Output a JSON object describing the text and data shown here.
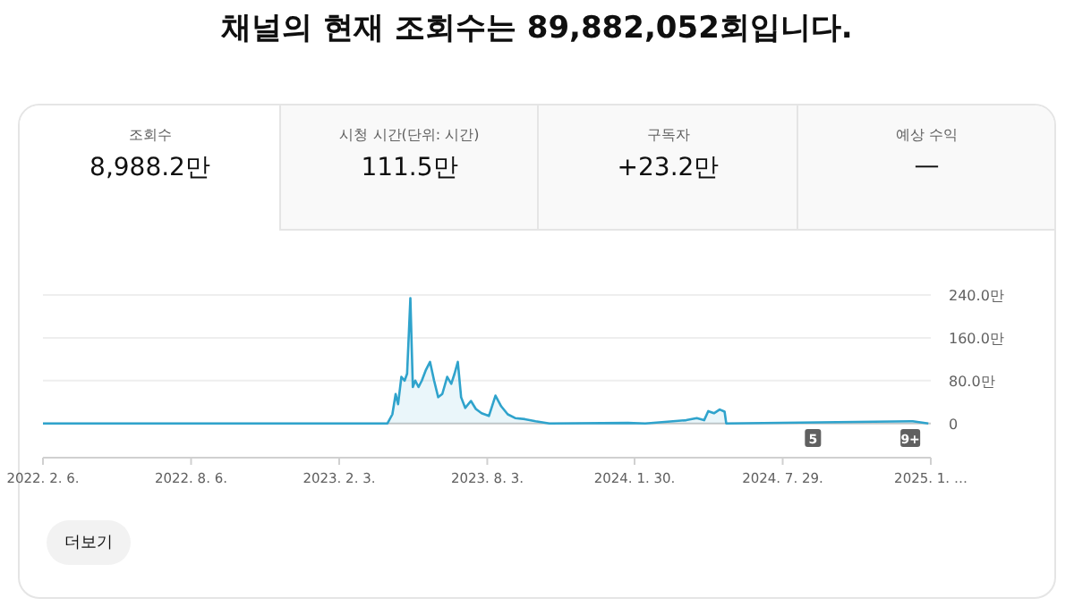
{
  "chart_data": {
    "type": "area",
    "title": "채널의 현재 조회수는 89,882,052회입니다.",
    "annotations": [
      "조회수",
      "8,988.2만",
      "시청 시간(단위: 시간)",
      "111.5만",
      "구독자",
      "+23.2만",
      "예상 수익",
      "—",
      {
        "text": "5",
        "x": "2024-09-04"
      },
      {
        "text": "9+",
        "x": "2025-01-01"
      },
      "더보기"
    ],
    "x": [
      "2022-02-06",
      "2023-04-03",
      "2023-04-09",
      "2023-04-13",
      "2023-04-16",
      "2023-04-20",
      "2023-04-24",
      "2023-04-27",
      "2023-05-01",
      "2023-05-04",
      "2023-05-07",
      "2023-05-11",
      "2023-05-15",
      "2023-05-20",
      "2023-05-25",
      "2023-05-30",
      "2023-06-04",
      "2023-06-09",
      "2023-06-15",
      "2023-06-20",
      "2023-06-24",
      "2023-06-28",
      "2023-07-02",
      "2023-07-07",
      "2023-07-14",
      "2023-07-20",
      "2023-07-27",
      "2023-08-05",
      "2023-08-13",
      "2023-08-20",
      "2023-08-28",
      "2023-09-06",
      "2023-09-18",
      "2023-10-01",
      "2023-10-18",
      "2024-01-22",
      "2024-02-12",
      "2024-03-17",
      "2024-04-02",
      "2024-04-15",
      "2024-04-24",
      "2024-04-29",
      "2024-05-06",
      "2024-05-13",
      "2024-05-19",
      "2024-05-21",
      "2025-01-04",
      "2025-01-23"
    ],
    "series": [
      {
        "color": "#2fa3cc",
        "values": [
          0,
          0,
          17,
          55,
          36,
          87,
          80,
          93,
          234,
          68,
          80,
          68,
          80,
          100,
          115,
          80,
          49,
          55,
          87,
          74,
          93,
          115,
          49,
          29,
          42,
          27,
          19,
          14,
          52,
          32,
          17,
          10,
          8,
          4,
          0,
          1,
          0,
          4,
          6,
          10,
          6,
          23,
          19,
          26,
          22,
          0,
          4,
          0
        ]
      }
    ],
    "xlim": [
      "2022-02-06",
      "2025-01-26"
    ],
    "xticks": [
      {
        "value": "2022-02-06",
        "label": "2022. 2. 6."
      },
      {
        "value": "2022-08-06",
        "label": "2022. 8. 6."
      },
      {
        "value": "2023-02-03",
        "label": "2023. 2. 3."
      },
      {
        "value": "2023-08-03",
        "label": "2023. 8. 3."
      },
      {
        "value": "2024-01-30",
        "label": "2024. 1. 30."
      },
      {
        "value": "2024-07-29",
        "label": "2024. 7. 29."
      },
      {
        "value": "2025-01-26",
        "label": "2025. 1. …"
      }
    ],
    "ylim": [
      -64,
      240
    ],
    "yticks": [
      {
        "value": 0,
        "label": "0"
      },
      {
        "value": 80,
        "label": "80.0만"
      },
      {
        "value": 160,
        "label": "160.0만"
      },
      {
        "value": 240,
        "label": "240.0만"
      }
    ],
    "grid": "y"
  }
}
